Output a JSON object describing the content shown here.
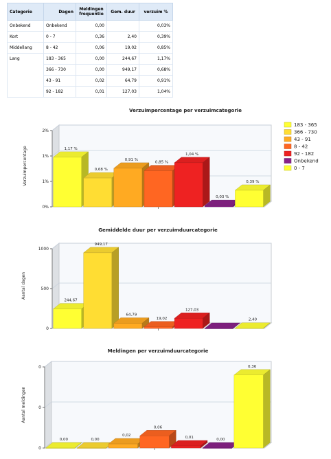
{
  "table": {
    "headers": [
      "Categorie",
      "Dagen",
      "Meldingen frequentie",
      "Gem. duur",
      "verzuim %"
    ],
    "rows": [
      {
        "cat": "Onbekend",
        "dagen": "Onbekend",
        "meld": "0,00",
        "duur": "",
        "verzuim": "0,03%"
      },
      {
        "cat": "Kort",
        "dagen": "0 - 7",
        "meld": "0,36",
        "duur": "2,40",
        "verzuim": "0,39%"
      },
      {
        "cat": "Middellang",
        "dagen": "8 - 42",
        "meld": "0,06",
        "duur": "19,02",
        "verzuim": "0,85%"
      },
      {
        "cat": "Lang",
        "dagen": "183 - 365",
        "meld": "0,00",
        "duur": "244,67",
        "verzuim": "1,17%"
      },
      {
        "cat": "",
        "dagen": "366 - 730",
        "meld": "0,00",
        "duur": "949,17",
        "verzuim": "0,68%"
      },
      {
        "cat": "",
        "dagen": "43 - 91",
        "meld": "0,02",
        "duur": "64,79",
        "verzuim": "0,91%"
      },
      {
        "cat": "",
        "dagen": "92 - 182",
        "meld": "0,01",
        "duur": "127,03",
        "verzuim": "1,04%"
      }
    ]
  },
  "legend": {
    "items": [
      {
        "label": "183 - 365",
        "color": "#ffff33"
      },
      {
        "label": "366 - 730",
        "color": "#ffdd33"
      },
      {
        "label": "43 - 91",
        "color": "#ffaa22"
      },
      {
        "label": "8 - 42",
        "color": "#ff6622"
      },
      {
        "label": "92 - 182",
        "color": "#ee2222"
      },
      {
        "label": "Onbekend",
        "color": "#882288"
      },
      {
        "label": "0 - 7",
        "color": "#ffff33"
      }
    ]
  },
  "chart_data": [
    {
      "type": "bar",
      "title": "Verzuimpercentage per verzuimcategorie",
      "ylabel": "Verzuimpercentage",
      "yticks": [
        "0%",
        "1%",
        "1%",
        "2%"
      ],
      "ytick_values": [
        0,
        0.6,
        1.2,
        1.8
      ],
      "ylim": [
        0,
        1.8
      ],
      "categories": [
        "183 - 365",
        "366 - 730",
        "43 - 91",
        "8 - 42",
        "92 - 182",
        "Onbekend",
        "0 - 7"
      ],
      "values": [
        1.17,
        0.68,
        0.91,
        0.85,
        1.04,
        0.03,
        0.39
      ],
      "labels": [
        "1,17 %",
        "0,68 %",
        "0,91 %",
        "0,85 %",
        "1,04 %",
        "0,03 %",
        "0,39 %"
      ],
      "colors": [
        "#ffff33",
        "#ffdd33",
        "#ffaa22",
        "#ff6622",
        "#ee2222",
        "#882288",
        "#ffff33"
      ],
      "legend": "right"
    },
    {
      "type": "bar",
      "title": "Gemiddelde duur per verzuimduurcategorie",
      "ylabel": "Aantal dagen",
      "yticks": [
        "0",
        "500",
        "1000"
      ],
      "ytick_values": [
        0,
        500,
        1000
      ],
      "ylim": [
        0,
        1000
      ],
      "categories": [
        "183 - 365",
        "366 - 730",
        "43 - 91",
        "8 - 42",
        "92 - 182",
        "Onbekend",
        "0 - 7"
      ],
      "values": [
        244.67,
        949.17,
        64.79,
        19.02,
        127.03,
        0,
        2.4
      ],
      "labels": [
        "244,67",
        "949,17",
        "64,79",
        "19,02",
        "127,03",
        "",
        "2,40"
      ],
      "colors": [
        "#ffff33",
        "#ffdd33",
        "#ffaa22",
        "#ff6622",
        "#ee2222",
        "#882288",
        "#ffff33"
      ]
    },
    {
      "type": "bar",
      "title": "Meldingen per verzuimduurcategorie",
      "ylabel": "Aantal meldingen",
      "yticks": [
        "0",
        "0",
        "0"
      ],
      "ytick_values": [
        0,
        0.2,
        0.4
      ],
      "ylim": [
        0,
        0.4
      ],
      "categories": [
        "183 - 365",
        "366 - 730",
        "43 - 91",
        "8 - 42",
        "92 - 182",
        "Onbekend",
        "0 - 7"
      ],
      "values": [
        0.0,
        0.0,
        0.02,
        0.06,
        0.01,
        0.0,
        0.36
      ],
      "labels": [
        "0,00",
        "0,00",
        "0,02",
        "0,06",
        "0,01",
        "0,00",
        "0,36"
      ],
      "colors": [
        "#ffff33",
        "#ffdd33",
        "#ffaa22",
        "#ff6622",
        "#ee2222",
        "#882288",
        "#ffff33"
      ]
    }
  ]
}
